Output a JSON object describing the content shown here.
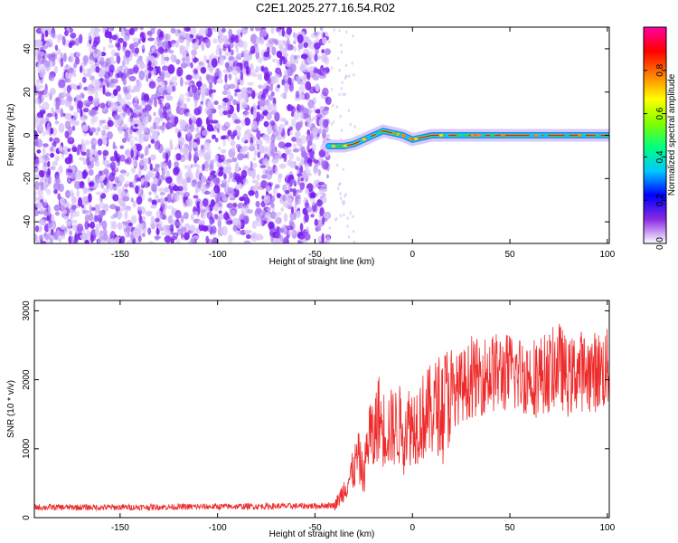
{
  "title": "C2E1.2025.277.16.54.R02",
  "colors": {
    "snr_line": "#ee2a2a",
    "noise_purple": "#7a1ef0",
    "noise_light": "#d8c4fa",
    "trace_core": "#e11818",
    "trace_halo": "#1c8cff",
    "background": "#ffffff"
  },
  "chart_data": [
    {
      "type": "heatmap",
      "title": "C2E1.2025.277.16.54.R02",
      "xlabel": "Height of straight line (km)",
      "ylabel": "Frequency (Hz)",
      "xlim": [
        -194,
        101
      ],
      "ylim": [
        -50,
        50
      ],
      "xticks": [
        -150,
        -100,
        -50,
        0,
        50,
        100
      ],
      "yticks": [
        -40,
        -20,
        0,
        20,
        40
      ],
      "noise_region_x": [
        -194,
        -43
      ],
      "trace_start_x": -43,
      "trace": {
        "x": [
          -43,
          -35,
          -30,
          -25,
          -20,
          -15,
          -10,
          -5,
          0,
          5,
          10,
          20,
          30,
          40,
          50,
          60,
          70,
          80,
          90,
          100
        ],
        "frequency": [
          -5,
          -5,
          -4,
          -2,
          0,
          2,
          1,
          0,
          -2,
          -1,
          0,
          0,
          0,
          0,
          0,
          0,
          0,
          0,
          0,
          0
        ]
      },
      "colorbar": {
        "label": "Normalized spectral amplitude",
        "range": [
          0,
          1
        ],
        "ticks": [
          "0.0",
          "0.2",
          "0.4",
          "0.6",
          "0.8"
        ],
        "colormap": [
          "#ffffff",
          "#8a2be2",
          "#0000ff",
          "#00c8ff",
          "#00ff80",
          "#80ff00",
          "#ffff00",
          "#ff8000",
          "#ff0000",
          "#ff00a0"
        ]
      }
    },
    {
      "type": "line",
      "xlabel": "Height of straight line (km)",
      "ylabel": "SNR (10 * v/v)",
      "xlim": [
        -194,
        101
      ],
      "ylim": [
        0,
        3150
      ],
      "xticks": [
        -150,
        -100,
        -50,
        0,
        50,
        100
      ],
      "yticks": [
        0,
        1000,
        2000,
        3000
      ],
      "series": [
        {
          "x": [
            -194,
            -150,
            -100,
            -50,
            -40,
            -38,
            -35,
            -30,
            -28,
            -25,
            -22,
            -20,
            -18,
            -15,
            -10,
            -5,
            0,
            10,
            20,
            30,
            40,
            50,
            60,
            70,
            75,
            80,
            85,
            90,
            100
          ],
          "values": [
            150,
            150,
            160,
            170,
            180,
            250,
            420,
            700,
            900,
            600,
            1300,
            1050,
            1500,
            1300,
            1300,
            1350,
            1350,
            1550,
            1800,
            2000,
            2100,
            2100,
            2050,
            2100,
            2250,
            2000,
            2150,
            2100,
            2150
          ]
        }
      ]
    }
  ]
}
